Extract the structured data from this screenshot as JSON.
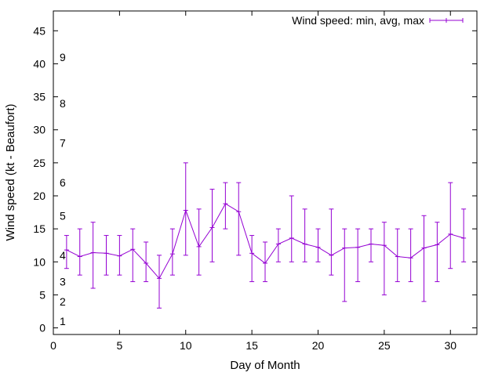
{
  "chart_data": {
    "type": "line",
    "xlabel": "Day of Month",
    "ylabel": "Wind speed (kt - Beaufort)",
    "xlim": [
      0,
      32
    ],
    "ylim": [
      -1,
      48
    ],
    "x_ticks": [
      0,
      5,
      10,
      15,
      20,
      25,
      30
    ],
    "y_ticks": [
      0,
      5,
      10,
      15,
      20,
      25,
      30,
      35,
      40,
      45
    ],
    "grid": false,
    "legend_position": "top-right",
    "beaufort_labels": [
      {
        "label": "1",
        "y": 1
      },
      {
        "label": "2",
        "y": 4
      },
      {
        "label": "3",
        "y": 7
      },
      {
        "label": "4",
        "y": 11
      },
      {
        "label": "5",
        "y": 17
      },
      {
        "label": "6",
        "y": 22
      },
      {
        "label": "7",
        "y": 28
      },
      {
        "label": "8",
        "y": 34
      },
      {
        "label": "9",
        "y": 41
      }
    ],
    "series": [
      {
        "name": "Wind speed: min, avg, max",
        "color": "#9400d3",
        "x": [
          1,
          2,
          3,
          4,
          5,
          6,
          7,
          8,
          9,
          10,
          11,
          12,
          13,
          14,
          15,
          16,
          17,
          18,
          19,
          20,
          21,
          22,
          23,
          24,
          25,
          26,
          27,
          28,
          29,
          30,
          31
        ],
        "avg": [
          11.8,
          10.8,
          11.4,
          11.3,
          10.9,
          11.9,
          9.8,
          7.5,
          11.2,
          17.8,
          12.3,
          15.2,
          18.8,
          17.6,
          11.3,
          9.8,
          12.7,
          13.6,
          12.7,
          12.2,
          11.0,
          12.1,
          12.2,
          12.7,
          12.5,
          10.8,
          10.6,
          12.1,
          12.6,
          14.2,
          13.6
        ],
        "min": [
          9,
          8,
          6,
          8,
          8,
          7,
          7,
          3,
          8,
          11,
          8,
          10,
          15,
          11,
          7,
          7,
          10,
          10,
          10,
          10,
          8,
          4,
          7,
          10,
          5,
          7,
          7,
          4,
          7,
          9,
          10
        ],
        "max": [
          14,
          15,
          16,
          14,
          14,
          15,
          13,
          11,
          15,
          25,
          18,
          21,
          22,
          22,
          14,
          13,
          15,
          20,
          18,
          15,
          18,
          15,
          15,
          15,
          16,
          15,
          15,
          17,
          16,
          22,
          18
        ]
      }
    ]
  }
}
